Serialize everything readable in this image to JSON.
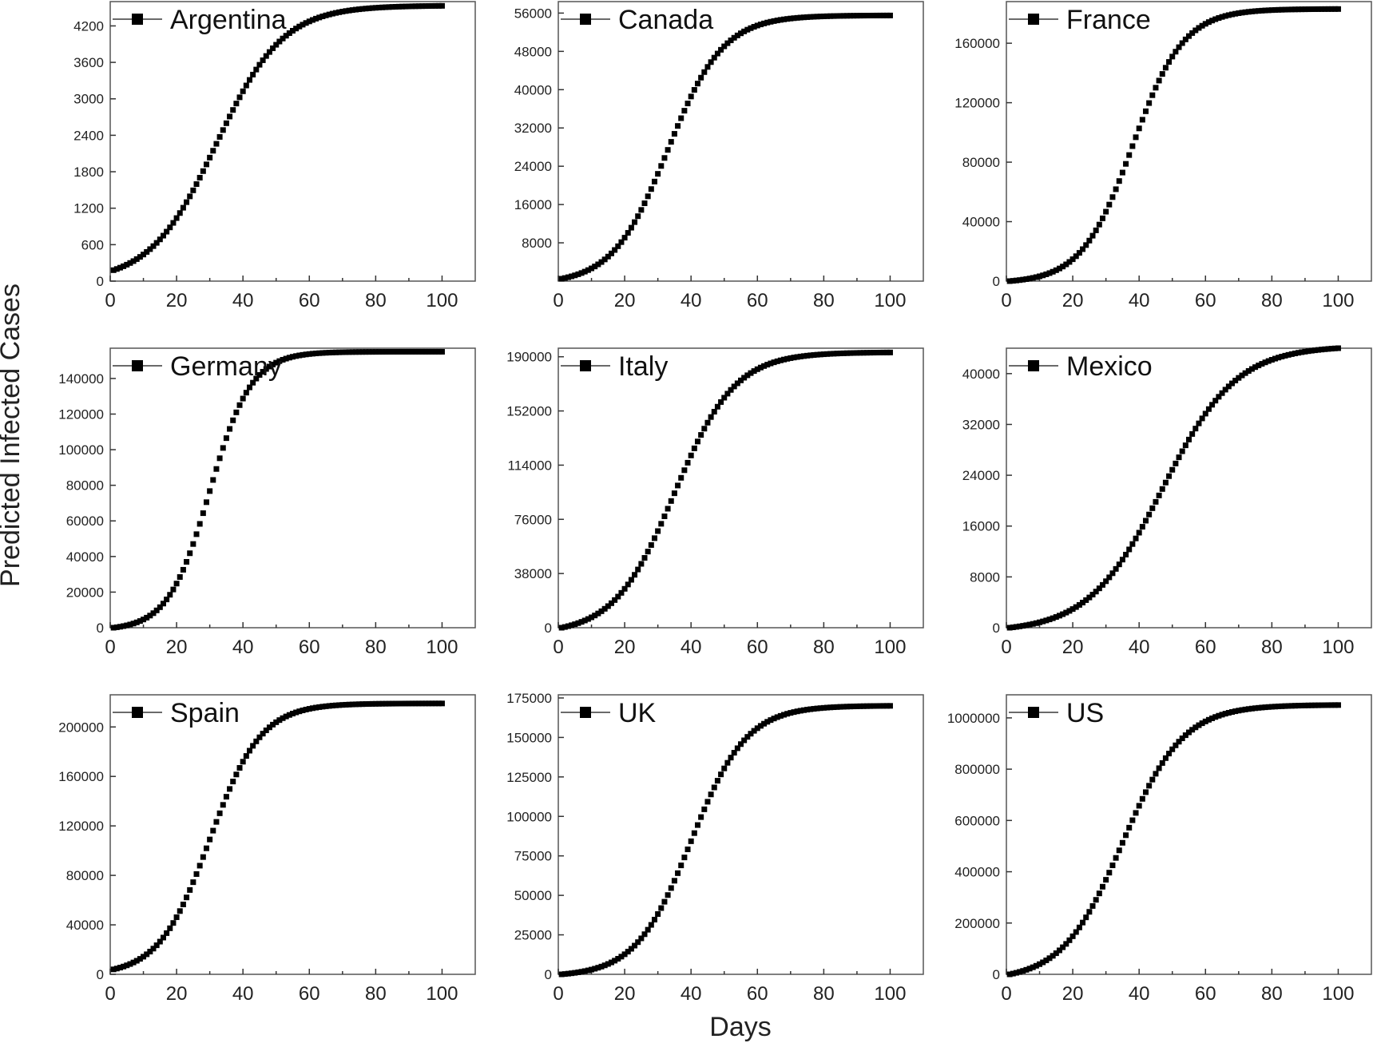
{
  "chart_data": {
    "type": "scatter",
    "xlabel": "Days",
    "ylabel": "Predicted Infected Cases",
    "marker": "square",
    "colors": {
      "marker": "#000000",
      "frame": "#555555",
      "text": "#222222"
    },
    "panels": [
      {
        "title": "Argentina",
        "legend": "top-left",
        "xlim": [
          0,
          110
        ],
        "xticks": [
          0,
          20,
          40,
          60,
          80,
          100
        ],
        "ylim": [
          0,
          4600
        ],
        "yticks": [
          0,
          600,
          1200,
          1800,
          2400,
          3000,
          3600,
          4200
        ],
        "ytick_labels": [
          "0",
          "600",
          "1200",
          "1800",
          "2400",
          "3000",
          "3600",
          "4200"
        ],
        "series": {
          "name": "Argentina",
          "x_start": 1,
          "x_end": 100,
          "x_step": 1,
          "y_start": 180,
          "y_end": 4530,
          "midpoint_day": 32,
          "growth_rate": 0.1
        }
      },
      {
        "title": "Canada",
        "legend": "top-left",
        "xlim": [
          0,
          110
        ],
        "xticks": [
          0,
          20,
          40,
          60,
          80,
          100
        ],
        "ylim": [
          0,
          58400
        ],
        "yticks": [
          8000,
          16000,
          24000,
          32000,
          40000,
          48000,
          56000
        ],
        "ytick_labels": [
          "8000",
          "16000",
          "24000",
          "32000",
          "40000",
          "48000",
          "56000"
        ],
        "series": {
          "name": "Canada",
          "x_start": 1,
          "x_end": 100,
          "x_step": 1,
          "y_start": 500,
          "y_end": 55500,
          "midpoint_day": 33,
          "growth_rate": 0.12
        }
      },
      {
        "title": "France",
        "legend": "top-left",
        "xlim": [
          0,
          110
        ],
        "xticks": [
          0,
          20,
          40,
          60,
          80,
          100
        ],
        "ylim": [
          0,
          188000
        ],
        "yticks": [
          0,
          40000,
          80000,
          120000,
          160000
        ],
        "ytick_labels": [
          "0",
          "40000",
          "80000",
          "120000",
          "160000"
        ],
        "series": {
          "name": "France",
          "x_start": 1,
          "x_end": 100,
          "x_step": 1,
          "y_start": 0,
          "y_end": 183000,
          "midpoint_day": 38,
          "growth_rate": 0.13
        }
      },
      {
        "title": "Germany",
        "legend": "top-left",
        "xlim": [
          0,
          110
        ],
        "xticks": [
          0,
          20,
          40,
          60,
          80,
          100
        ],
        "ylim": [
          0,
          157000
        ],
        "yticks": [
          0,
          20000,
          40000,
          60000,
          80000,
          100000,
          120000,
          140000
        ],
        "ytick_labels": [
          "0",
          "20000",
          "40000",
          "60000",
          "80000",
          "100000",
          "120000",
          "140000"
        ],
        "series": {
          "name": "Germany",
          "x_start": 1,
          "x_end": 100,
          "x_step": 1,
          "y_start": 0,
          "y_end": 155000,
          "midpoint_day": 30,
          "growth_rate": 0.16
        }
      },
      {
        "title": "Italy",
        "legend": "top-left",
        "xlim": [
          0,
          110
        ],
        "xticks": [
          0,
          20,
          40,
          60,
          80,
          100
        ],
        "ylim": [
          0,
          196000
        ],
        "yticks": [
          0,
          38000,
          76000,
          114000,
          152000,
          190000
        ],
        "ytick_labels": [
          "0",
          "38000",
          "76000",
          "114000",
          "152000",
          "190000"
        ],
        "series": {
          "name": "Italy",
          "x_start": 1,
          "x_end": 100,
          "x_step": 1,
          "y_start": 0,
          "y_end": 193000,
          "midpoint_day": 35,
          "growth_rate": 0.11
        }
      },
      {
        "title": "Mexico",
        "legend": "top-left",
        "xlim": [
          0,
          110
        ],
        "xticks": [
          0,
          20,
          40,
          60,
          80,
          100
        ],
        "ylim": [
          0,
          44000
        ],
        "yticks": [
          0,
          8000,
          16000,
          24000,
          32000,
          40000
        ],
        "ytick_labels": [
          "0",
          "8000",
          "16000",
          "24000",
          "32000",
          "40000"
        ],
        "series": {
          "name": "Mexico",
          "x_start": 1,
          "x_end": 100,
          "x_step": 1,
          "y_start": 0,
          "y_end": 44000,
          "midpoint_day": 47,
          "growth_rate": 0.09
        }
      },
      {
        "title": "Spain",
        "legend": "top-left",
        "xlim": [
          0,
          110
        ],
        "xticks": [
          0,
          20,
          40,
          60,
          80,
          100
        ],
        "ylim": [
          0,
          226000
        ],
        "yticks": [
          0,
          40000,
          80000,
          120000,
          160000,
          200000
        ],
        "ytick_labels": [
          "0",
          "40000",
          "80000",
          "120000",
          "160000",
          "200000"
        ],
        "series": {
          "name": "Spain",
          "x_start": 1,
          "x_end": 100,
          "x_step": 1,
          "y_start": 4000,
          "y_end": 219000,
          "midpoint_day": 30,
          "growth_rate": 0.13
        }
      },
      {
        "title": "UK",
        "legend": "top-left",
        "xlim": [
          0,
          110
        ],
        "xticks": [
          0,
          20,
          40,
          60,
          80,
          100
        ],
        "ylim": [
          0,
          177000
        ],
        "yticks": [
          0,
          25000,
          50000,
          75000,
          100000,
          125000,
          150000,
          175000
        ],
        "ytick_labels": [
          "0",
          "25000",
          "50000",
          "75000",
          "100000",
          "125000",
          "150000",
          "175000"
        ],
        "series": {
          "name": "UK",
          "x_start": 1,
          "x_end": 100,
          "x_step": 1,
          "y_start": 0,
          "y_end": 170000,
          "midpoint_day": 40,
          "growth_rate": 0.12
        }
      },
      {
        "title": "US",
        "legend": "top-left",
        "xlim": [
          0,
          110
        ],
        "xticks": [
          0,
          20,
          40,
          60,
          80,
          100
        ],
        "ylim": [
          0,
          1090000
        ],
        "yticks": [
          0,
          200000,
          400000,
          600000,
          800000,
          1000000
        ],
        "ytick_labels": [
          "0",
          "200000",
          "400000",
          "600000",
          "800000",
          "1000000"
        ],
        "series": {
          "name": "US",
          "x_start": 1,
          "x_end": 100,
          "x_step": 1,
          "y_start": 0,
          "y_end": 1050000,
          "midpoint_day": 35,
          "growth_rate": 0.11
        }
      }
    ]
  }
}
